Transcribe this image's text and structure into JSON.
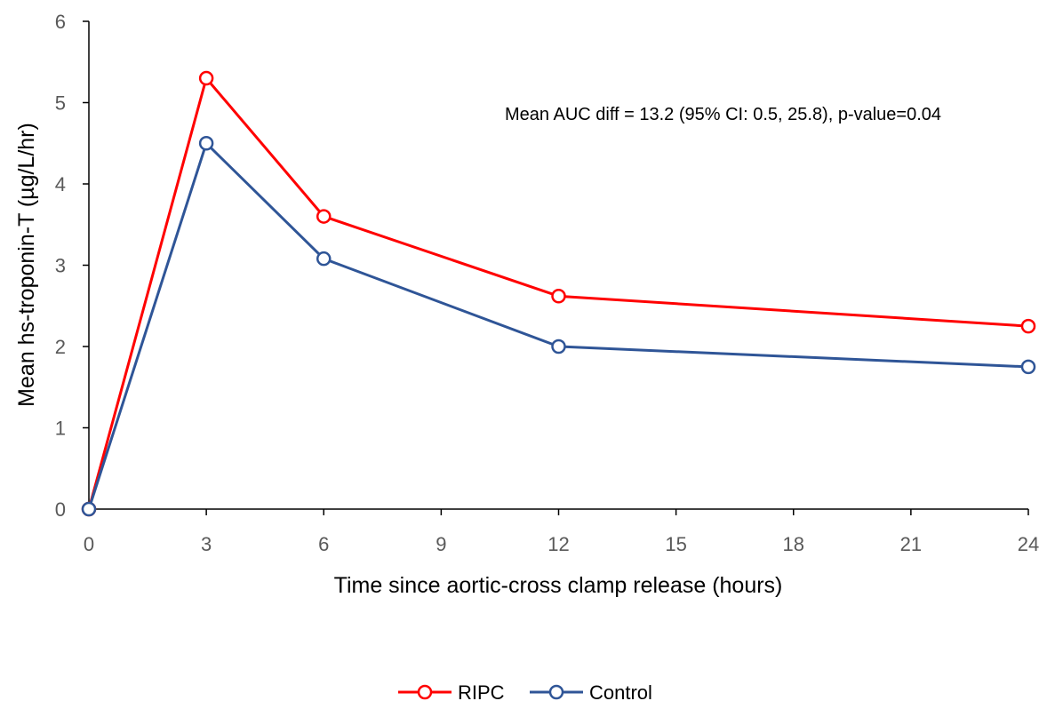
{
  "chart_data": {
    "type": "line",
    "title": "",
    "xlabel": "Time since aortic-cross clamp release (hours)",
    "ylabel": "Mean hs-troponin-T (µg/L/hr)",
    "xlim": [
      0,
      24
    ],
    "ylim": [
      0,
      6
    ],
    "x_ticks": [
      0,
      3,
      6,
      9,
      12,
      15,
      18,
      21,
      24
    ],
    "y_ticks": [
      0,
      1,
      2,
      3,
      4,
      5,
      6
    ],
    "grid": false,
    "legend_position": "bottom",
    "annotation": "Mean AUC diff = 13.2 (95% CI: 0.5, 25.8), p-value=0.04",
    "x": [
      0,
      3,
      6,
      12,
      24
    ],
    "series": [
      {
        "name": "RIPC",
        "color": "#ff0000",
        "marker": "open-circle",
        "values": [
          0,
          5.3,
          3.6,
          2.62,
          2.25
        ]
      },
      {
        "name": "Control",
        "color": "#2f5597",
        "marker": "open-circle",
        "values": [
          0,
          4.5,
          3.08,
          2.0,
          1.75
        ]
      }
    ]
  }
}
